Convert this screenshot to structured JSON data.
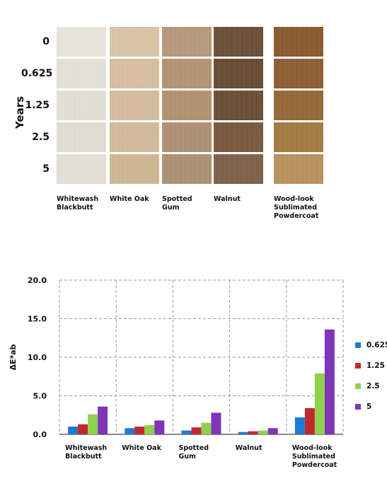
{
  "swatch_grid": {
    "axis_title": "Years",
    "years": [
      "0",
      "0.625",
      "1.25",
      "2.5",
      "5"
    ],
    "materials": [
      "Whitewash\nBlackbutt",
      "White Oak",
      "Spotted\nGum",
      "Walnut",
      "Wood-look\nSublimated\nPowdercoat"
    ],
    "colors": [
      [
        "#ebe7df",
        "#ddc7a8",
        "#b89a7a",
        "#6e4f37",
        "#8a5a2f"
      ],
      [
        "#e8e3d9",
        "#d8c1a0",
        "#b49574",
        "#6a4b33",
        "#8e5e31"
      ],
      [
        "#e6e1d6",
        "#d6be9c",
        "#b39372",
        "#6d4e35",
        "#956836"
      ],
      [
        "#e4dfd3",
        "#d3bc9a",
        "#b09274",
        "#7a5a40",
        "#a57a42"
      ],
      [
        "#e6e2d8",
        "#d0b993",
        "#ad9272",
        "#7e6149",
        "#b9935e"
      ]
    ]
  },
  "chart_data": {
    "type": "bar",
    "ylabel": "ΔE*ab",
    "categories": [
      "Whitewash\nBlackbutt",
      "White Oak",
      "Spotted\nGum",
      "Walnut",
      "Wood-look\nSublimated\nPowdercoat"
    ],
    "ylim": [
      0,
      20
    ],
    "yticks": [
      "0.0",
      "5.0",
      "10.0",
      "15.0",
      "20.0"
    ],
    "grid": true,
    "legend_position": "right",
    "series": [
      {
        "name": "0.625",
        "color": "#1f7ad1",
        "values": [
          1.0,
          0.8,
          0.5,
          0.3,
          2.2
        ]
      },
      {
        "name": "1.25",
        "color": "#c0282d",
        "values": [
          1.3,
          1.0,
          0.9,
          0.4,
          3.4
        ]
      },
      {
        "name": "2.5",
        "color": "#8fd14f",
        "values": [
          2.6,
          1.2,
          1.5,
          0.5,
          7.9
        ]
      },
      {
        "name": "5",
        "color": "#7e35b8",
        "values": [
          3.6,
          1.8,
          2.8,
          0.8,
          13.6
        ]
      }
    ]
  }
}
